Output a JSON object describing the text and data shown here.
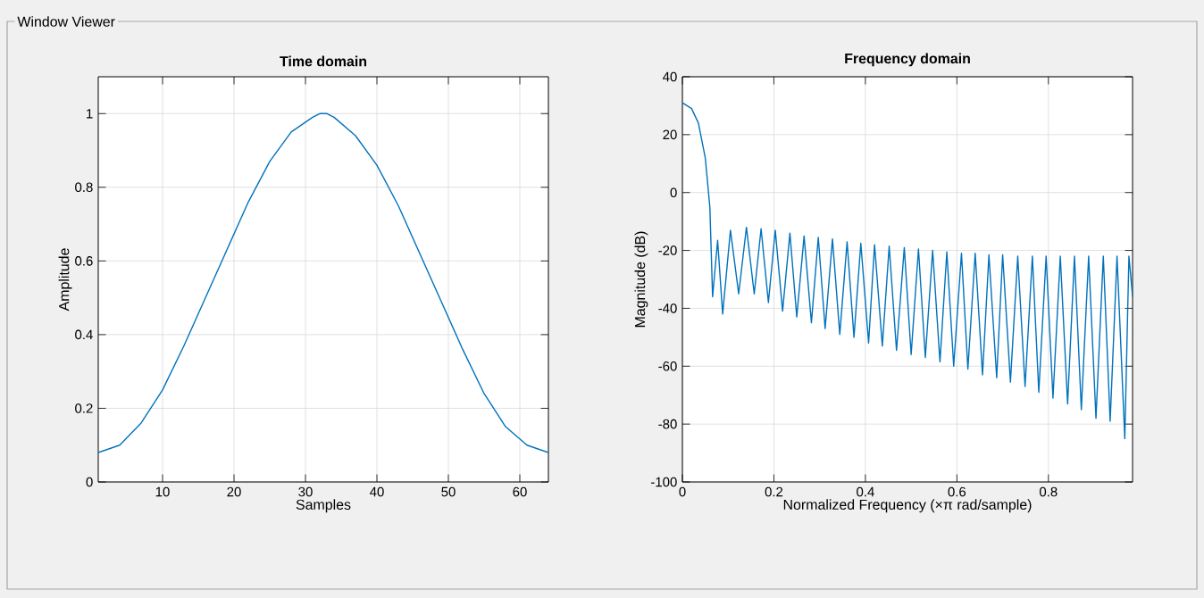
{
  "chart_data": [
    {
      "type": "line",
      "title": "Time domain",
      "xlabel": "Samples",
      "ylabel": "Amplitude",
      "annotations": [
        "Window Viewer"
      ],
      "xlim": [
        1,
        64
      ],
      "ylim": [
        0,
        1.1
      ],
      "xticks": [
        10,
        20,
        30,
        40,
        50,
        60
      ],
      "yticks": [
        0,
        0.2,
        0.4,
        0.6,
        0.8,
        1
      ],
      "grid": true,
      "series": [
        {
          "color": "#0072bd",
          "x": [
            1,
            4,
            7,
            10,
            13,
            16,
            19,
            22,
            25,
            28,
            31,
            32,
            33,
            34,
            37,
            40,
            43,
            46,
            49,
            52,
            55,
            58,
            61,
            64
          ],
          "values": [
            0.08,
            0.1,
            0.16,
            0.25,
            0.37,
            0.5,
            0.63,
            0.76,
            0.87,
            0.95,
            0.99,
            1.0,
            1.0,
            0.99,
            0.94,
            0.86,
            0.75,
            0.62,
            0.49,
            0.36,
            0.24,
            0.15,
            0.1,
            0.08
          ]
        }
      ]
    },
    {
      "type": "line",
      "title": "Frequency domain",
      "xlabel": "Normalized Frequency  (×π rad/sample)",
      "ylabel": "Magnitude (dB)",
      "xlim": [
        0,
        0.984
      ],
      "ylim": [
        -100,
        40
      ],
      "xticks": [
        0,
        0.2,
        0.4,
        0.6,
        0.8
      ],
      "yticks": [
        -100,
        -80,
        -60,
        -40,
        -20,
        0,
        20,
        40
      ],
      "grid": true,
      "series": [
        {
          "color": "#0072bd",
          "x": [
            0,
            0.02,
            0.035,
            0.05,
            0.06,
            0.066,
            0.077,
            0.088,
            0.105,
            0.123,
            0.14,
            0.157,
            0.172,
            0.188,
            0.203,
            0.219,
            0.235,
            0.25,
            0.266,
            0.282,
            0.297,
            0.312,
            0.328,
            0.344,
            0.36,
            0.375,
            0.39,
            0.407,
            0.42,
            0.437,
            0.452,
            0.468,
            0.485,
            0.5,
            0.516,
            0.531,
            0.547,
            0.563,
            0.578,
            0.593,
            0.61,
            0.624,
            0.64,
            0.656,
            0.67,
            0.687,
            0.7,
            0.717,
            0.733,
            0.749,
            0.765,
            0.779,
            0.795,
            0.81,
            0.826,
            0.842,
            0.857,
            0.872,
            0.888,
            0.904,
            0.92,
            0.935,
            0.95,
            0.967,
            0.976,
            0.984
          ],
          "values": [
            31,
            29,
            24,
            12,
            -5,
            -36,
            -16.5,
            -42,
            -13,
            -35,
            -12,
            -35,
            -12.5,
            -38,
            -13,
            -41,
            -14,
            -43,
            -15,
            -45,
            -15.5,
            -47,
            -16,
            -49,
            -17,
            -50,
            -17.5,
            -52,
            -18,
            -53,
            -18.5,
            -54.5,
            -19,
            -56,
            -19.5,
            -57,
            -20,
            -58.5,
            -20.5,
            -60,
            -21,
            -61,
            -21,
            -63,
            -21.5,
            -64,
            -21.5,
            -65.5,
            -22,
            -67,
            -22,
            -69,
            -22,
            -71,
            -22,
            -73,
            -22,
            -75,
            -22,
            -78,
            -22,
            -79,
            -22,
            -85,
            -22,
            -36
          ]
        }
      ]
    }
  ]
}
